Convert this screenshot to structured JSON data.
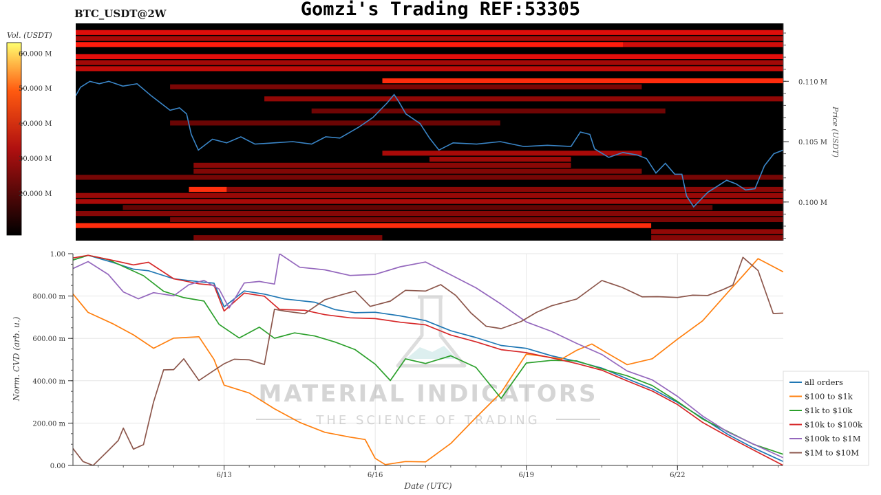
{
  "header": {
    "pair_label": "BTC_USDT@2W",
    "title": "Gomzi's Trading REF:53305"
  },
  "colors": {
    "heat_low": "#000000",
    "heat_mid": "#cc1010",
    "heat_high": "#ffff60",
    "price_line": "#3a86c8",
    "grid": "#e6e6e6"
  },
  "chart_data": [
    {
      "type": "heatmap",
      "title": "BTC_USDT@2W",
      "colorbar": {
        "label": "Vol. (USDT)",
        "ticks": [
          "20.000 M",
          "30.000 M",
          "40.000 M",
          "50.000 M",
          "60.000 M"
        ],
        "tick_values": [
          20,
          30,
          40,
          50,
          60
        ],
        "range": [
          8,
          63
        ]
      },
      "y_axis": {
        "label": "Price (USDT)",
        "position": "right",
        "ticks": [
          "0.100 M",
          "0.105 M",
          "0.110 M"
        ],
        "tick_values": [
          100000,
          105000,
          110000
        ],
        "range": [
          96800,
          114800
        ]
      },
      "x_range_days": [
        0,
        15
      ],
      "liquidity_bands": [
        {
          "price": 114000,
          "start": 0.0,
          "end": 15.0,
          "intensity": 0.78
        },
        {
          "price": 113500,
          "start": 0.0,
          "end": 15.0,
          "intensity": 0.55
        },
        {
          "price": 113000,
          "start": 0.0,
          "end": 11.6,
          "intensity": 0.92
        },
        {
          "price": 113000,
          "start": 11.6,
          "end": 15.0,
          "intensity": 0.72
        },
        {
          "price": 112000,
          "start": 0.0,
          "end": 15.0,
          "intensity": 0.8
        },
        {
          "price": 111500,
          "start": 0.0,
          "end": 15.0,
          "intensity": 0.52
        },
        {
          "price": 111000,
          "start": 0.0,
          "end": 15.0,
          "intensity": 0.65
        },
        {
          "price": 110000,
          "start": 6.5,
          "end": 15.0,
          "intensity": 0.96
        },
        {
          "price": 109500,
          "start": 2.0,
          "end": 12.0,
          "intensity": 0.35
        },
        {
          "price": 108500,
          "start": 4.0,
          "end": 15.0,
          "intensity": 0.45
        },
        {
          "price": 107500,
          "start": 5.0,
          "end": 12.5,
          "intensity": 0.3
        },
        {
          "price": 106500,
          "start": 2.0,
          "end": 9.0,
          "intensity": 0.28
        },
        {
          "price": 104000,
          "start": 6.5,
          "end": 12.0,
          "intensity": 0.55
        },
        {
          "price": 103500,
          "start": 7.5,
          "end": 10.5,
          "intensity": 0.5
        },
        {
          "price": 103000,
          "start": 2.5,
          "end": 10.5,
          "intensity": 0.42
        },
        {
          "price": 102500,
          "start": 2.5,
          "end": 12.0,
          "intensity": 0.38
        },
        {
          "price": 102000,
          "start": 0.0,
          "end": 15.0,
          "intensity": 0.33
        },
        {
          "price": 101000,
          "start": 2.4,
          "end": 15.0,
          "intensity": 0.42
        },
        {
          "price": 101000,
          "start": 2.4,
          "end": 3.2,
          "intensity": 0.97
        },
        {
          "price": 100500,
          "start": 0.0,
          "end": 15.0,
          "intensity": 0.48
        },
        {
          "price": 100000,
          "start": 0.0,
          "end": 15.0,
          "intensity": 0.55
        },
        {
          "price": 99500,
          "start": 1.0,
          "end": 13.5,
          "intensity": 0.25
        },
        {
          "price": 99000,
          "start": 0.0,
          "end": 15.0,
          "intensity": 0.4
        },
        {
          "price": 98500,
          "start": 2.0,
          "end": 15.0,
          "intensity": 0.35
        },
        {
          "price": 98000,
          "start": 0.0,
          "end": 12.2,
          "intensity": 0.96
        },
        {
          "price": 97500,
          "start": 12.2,
          "end": 15.0,
          "intensity": 0.45
        },
        {
          "price": 97000,
          "start": 2.5,
          "end": 6.5,
          "intensity": 0.35
        },
        {
          "price": 97000,
          "start": 12.2,
          "end": 15.0,
          "intensity": 0.4
        }
      ],
      "price_series": {
        "x": [
          0.0,
          0.1,
          0.3,
          0.5,
          0.7,
          1.0,
          1.3,
          1.6,
          2.0,
          2.2,
          2.35,
          2.45,
          2.6,
          2.9,
          3.2,
          3.5,
          3.8,
          4.2,
          4.6,
          5.0,
          5.3,
          5.6,
          6.0,
          6.3,
          6.6,
          6.75,
          6.85,
          7.0,
          7.3,
          7.5,
          7.7,
          8.0,
          8.5,
          9.0,
          9.5,
          10.0,
          10.5,
          10.7,
          10.9,
          11.0,
          11.3,
          11.6,
          11.9,
          12.1,
          12.3,
          12.5,
          12.7,
          12.85,
          12.95,
          13.1,
          13.4,
          13.8,
          14.0,
          14.2,
          14.4,
          14.6,
          14.8,
          15.0
        ],
        "y": [
          108800,
          109500,
          110000,
          109800,
          110000,
          109600,
          109800,
          108800,
          107600,
          107800,
          107300,
          105600,
          104300,
          105200,
          104900,
          105400,
          104800,
          104900,
          105000,
          104800,
          105400,
          105300,
          106200,
          107000,
          108200,
          108900,
          108300,
          107300,
          106500,
          105300,
          104300,
          104900,
          104800,
          105000,
          104600,
          104700,
          104600,
          105800,
          105600,
          104400,
          103700,
          104100,
          103900,
          103600,
          102400,
          103200,
          102300,
          102300,
          100500,
          99600,
          100800,
          101800,
          101500,
          101000,
          101100,
          103000,
          104000,
          104300
        ]
      }
    },
    {
      "type": "line",
      "ylabel": "Norm. CVD (arb. u.)",
      "xlabel": "Date (UTC)",
      "x_tick_labels": [
        "6/13",
        "6/16",
        "6/19",
        "6/22"
      ],
      "x_tick_positions": [
        3.0,
        6.0,
        9.0,
        12.0
      ],
      "xlim": [
        0,
        14.1
      ],
      "y_tick_labels": [
        "0.00",
        "200.00 m",
        "400.00 m",
        "600.00 m",
        "800.00 m",
        "1.00"
      ],
      "y_tick_values": [
        0,
        0.2,
        0.4,
        0.6,
        0.8,
        1.0
      ],
      "ylim": [
        0,
        1.0
      ],
      "grid": true,
      "legend_position": "right",
      "series": [
        {
          "name": "all orders",
          "color": "#1f77b4",
          "x": [
            0.0,
            0.3,
            0.8,
            1.2,
            1.5,
            2.0,
            2.5,
            2.8,
            3.0,
            3.4,
            3.8,
            4.2,
            4.8,
            5.2,
            5.6,
            6.0,
            6.5,
            7.0,
            7.5,
            8.0,
            8.5,
            9.0,
            9.5,
            10.0,
            10.5,
            11.0,
            11.5,
            12.0,
            12.5,
            13.0,
            13.5,
            14.1
          ],
          "y": [
            0.97,
            0.99,
            0.96,
            0.93,
            0.92,
            0.88,
            0.87,
            0.86,
            0.75,
            0.82,
            0.81,
            0.79,
            0.77,
            0.74,
            0.72,
            0.72,
            0.71,
            0.68,
            0.64,
            0.6,
            0.57,
            0.55,
            0.52,
            0.49,
            0.46,
            0.41,
            0.36,
            0.3,
            0.22,
            0.15,
            0.08,
            0.02
          ]
        },
        {
          "name": "$100 to $1k",
          "color": "#ff7f0e",
          "x": [
            0.0,
            0.3,
            0.8,
            1.2,
            1.6,
            2.0,
            2.5,
            2.8,
            3.0,
            3.5,
            4.0,
            4.5,
            5.0,
            5.5,
            5.8,
            6.0,
            6.2,
            6.6,
            7.0,
            7.5,
            8.0,
            8.5,
            9.0,
            9.3,
            9.7,
            10.0,
            10.3,
            10.6,
            11.0,
            11.5,
            12.0,
            12.5,
            13.0,
            13.3,
            13.6,
            14.1
          ],
          "y": [
            0.81,
            0.72,
            0.67,
            0.62,
            0.55,
            0.6,
            0.61,
            0.5,
            0.38,
            0.34,
            0.27,
            0.2,
            0.16,
            0.13,
            0.12,
            0.03,
            0.0,
            0.02,
            0.02,
            0.1,
            0.23,
            0.34,
            0.53,
            0.52,
            0.5,
            0.54,
            0.57,
            0.53,
            0.48,
            0.5,
            0.6,
            0.68,
            0.82,
            0.9,
            0.98,
            0.91
          ]
        },
        {
          "name": "$1k to $10k",
          "color": "#2ca02c",
          "x": [
            0.0,
            0.3,
            0.7,
            1.0,
            1.4,
            1.8,
            2.2,
            2.6,
            2.9,
            3.3,
            3.7,
            4.0,
            4.4,
            4.8,
            5.2,
            5.6,
            6.0,
            6.3,
            6.6,
            7.0,
            7.5,
            8.0,
            8.5,
            9.0,
            9.5,
            10.0,
            10.5,
            11.0,
            11.5,
            12.0,
            12.5,
            13.0,
            13.5,
            14.1
          ],
          "y": [
            0.97,
            0.99,
            0.97,
            0.94,
            0.9,
            0.82,
            0.79,
            0.78,
            0.67,
            0.6,
            0.65,
            0.6,
            0.63,
            0.61,
            0.58,
            0.55,
            0.48,
            0.4,
            0.5,
            0.48,
            0.52,
            0.46,
            0.32,
            0.48,
            0.5,
            0.49,
            0.46,
            0.42,
            0.38,
            0.3,
            0.22,
            0.16,
            0.1,
            0.05
          ]
        },
        {
          "name": "$10k to $100k",
          "color": "#d62728",
          "x": [
            0.0,
            0.3,
            0.8,
            1.2,
            1.5,
            2.0,
            2.5,
            2.8,
            3.0,
            3.4,
            3.8,
            4.1,
            4.6,
            5.0,
            5.5,
            6.0,
            6.5,
            7.0,
            7.5,
            8.0,
            8.5,
            9.0,
            9.5,
            10.0,
            10.5,
            11.0,
            11.5,
            12.0,
            12.5,
            13.0,
            13.5,
            14.1
          ],
          "y": [
            0.98,
            0.99,
            0.97,
            0.95,
            0.96,
            0.88,
            0.86,
            0.85,
            0.73,
            0.81,
            0.8,
            0.74,
            0.73,
            0.71,
            0.7,
            0.69,
            0.68,
            0.66,
            0.62,
            0.58,
            0.55,
            0.53,
            0.51,
            0.48,
            0.45,
            0.4,
            0.35,
            0.29,
            0.2,
            0.14,
            0.07,
            0.0
          ]
        },
        {
          "name": "$100k to $1M",
          "color": "#9467bd",
          "x": [
            0.0,
            0.3,
            0.7,
            1.0,
            1.3,
            1.6,
            2.0,
            2.3,
            2.6,
            2.9,
            3.1,
            3.4,
            3.7,
            4.0,
            4.1,
            4.5,
            5.0,
            5.5,
            6.0,
            6.5,
            7.0,
            7.5,
            8.0,
            8.5,
            9.0,
            9.5,
            10.0,
            10.5,
            11.0,
            11.5,
            12.0,
            12.5,
            13.0,
            13.5,
            14.1
          ],
          "y": [
            0.93,
            0.96,
            0.9,
            0.82,
            0.79,
            0.82,
            0.8,
            0.85,
            0.87,
            0.83,
            0.74,
            0.86,
            0.87,
            0.86,
            1.0,
            0.94,
            0.92,
            0.9,
            0.9,
            0.94,
            0.96,
            0.9,
            0.84,
            0.76,
            0.68,
            0.63,
            0.58,
            0.52,
            0.45,
            0.4,
            0.33,
            0.23,
            0.16,
            0.1,
            0.04
          ]
        },
        {
          "name": "$1M to $10M",
          "color": "#8c564b",
          "x": [
            0.0,
            0.2,
            0.4,
            0.7,
            0.9,
            1.0,
            1.2,
            1.4,
            1.6,
            1.8,
            2.0,
            2.2,
            2.5,
            2.8,
            3.0,
            3.2,
            3.5,
            3.8,
            4.0,
            4.2,
            4.6,
            5.0,
            5.3,
            5.6,
            5.9,
            6.3,
            6.6,
            7.0,
            7.3,
            7.6,
            7.9,
            8.2,
            8.5,
            8.9,
            9.2,
            9.5,
            10.0,
            10.5,
            10.9,
            11.3,
            11.6,
            12.0,
            12.3,
            12.6,
            12.9,
            13.1,
            13.3,
            13.6,
            13.9,
            14.1
          ],
          "y": [
            0.08,
            0.02,
            0.0,
            0.07,
            0.12,
            0.18,
            0.08,
            0.1,
            0.3,
            0.45,
            0.45,
            0.5,
            0.4,
            0.45,
            0.48,
            0.5,
            0.5,
            0.48,
            0.74,
            0.73,
            0.72,
            0.78,
            0.8,
            0.82,
            0.75,
            0.78,
            0.83,
            0.82,
            0.85,
            0.8,
            0.72,
            0.66,
            0.65,
            0.68,
            0.72,
            0.75,
            0.79,
            0.87,
            0.84,
            0.8,
            0.8,
            0.79,
            0.8,
            0.8,
            0.83,
            0.85,
            0.98,
            0.92,
            0.72,
            0.72
          ]
        }
      ]
    }
  ],
  "watermark": {
    "brand": "MATERIAL INDICATORS",
    "tagline": "THE SCIENCE OF TRADING"
  }
}
